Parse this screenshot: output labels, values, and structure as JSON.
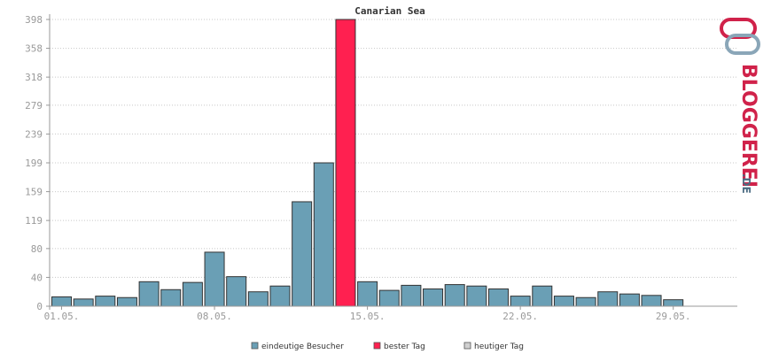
{
  "chart_data": {
    "type": "bar",
    "title": "Canarian Sea",
    "ylim": [
      0,
      398
    ],
    "yticks": [
      0,
      40,
      80,
      119,
      159,
      199,
      239,
      279,
      318,
      358,
      398
    ],
    "xtick_labels": [
      "01.05.",
      "08.05.",
      "15.05.",
      "22.05.",
      "29.05."
    ],
    "xtick_days": [
      1,
      8,
      15,
      22,
      29
    ],
    "grid": true,
    "legend_position": "bottom",
    "days": [
      1,
      2,
      3,
      4,
      5,
      6,
      7,
      8,
      9,
      10,
      11,
      12,
      13,
      14,
      15,
      16,
      17,
      18,
      19,
      20,
      21,
      22,
      23,
      24,
      25,
      26,
      27,
      28,
      29
    ],
    "series": [
      {
        "name": "eindeutige Besucher",
        "color": "#6a9fb5",
        "values": [
          13,
          10,
          14,
          12,
          34,
          23,
          33,
          75,
          41,
          20,
          28,
          145,
          199,
          398,
          34,
          22,
          29,
          24,
          30,
          28,
          24,
          14,
          28,
          14,
          12,
          20,
          17,
          15,
          9
        ]
      }
    ],
    "best_day_index": 13,
    "best_day_color": "#ff2050",
    "today_color": "#d0d0d0"
  },
  "legend": [
    {
      "label": "eindeutige Besucher",
      "color": "#6a9fb5"
    },
    {
      "label": "bester Tag",
      "color": "#ff2050"
    },
    {
      "label": "heutiger Tag",
      "color": "#d0d0d0"
    }
  ],
  "brand": {
    "name_main": "BLOGGEREI",
    "name_suffix": ".DE",
    "color_main": "#d0224a",
    "color_accent": "#4a6b82",
    "logo_icon": "bloggerei-logo-icon"
  }
}
